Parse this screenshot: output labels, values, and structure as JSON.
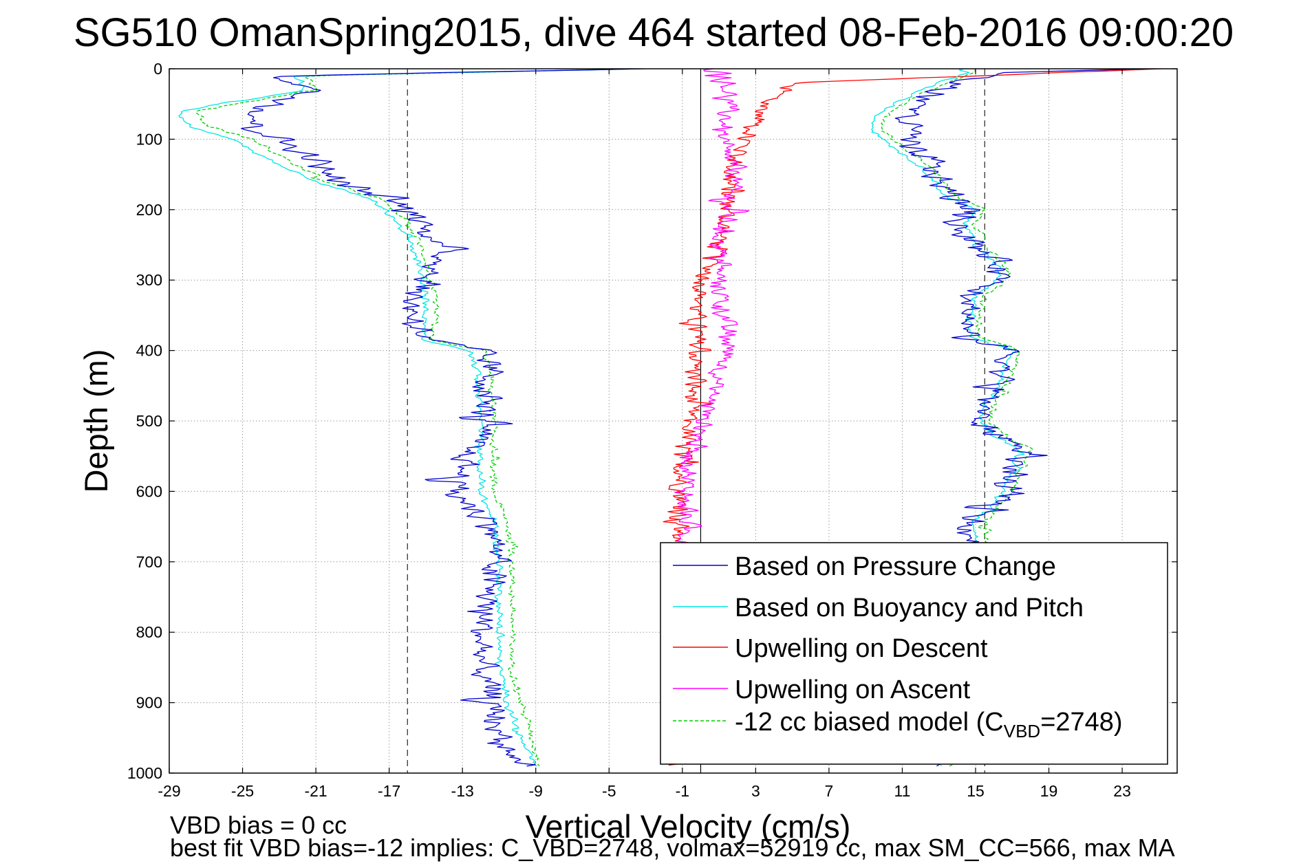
{
  "chart_data": {
    "type": "line",
    "title": "SG510 OmanSpring2015, dive 464 started 08-Feb-2016 09:00:20",
    "xlabel": "Vertical Velocity (cm/s)",
    "ylabel": "Depth (m)",
    "xlim": [
      -29,
      26
    ],
    "ylim": [
      0,
      1000
    ],
    "y_reversed": true,
    "grid": true,
    "x_ticks": [
      -29,
      -25,
      -21,
      -17,
      -13,
      -9,
      -5,
      -1,
      3,
      7,
      11,
      15,
      19,
      23
    ],
    "y_ticks": [
      0,
      100,
      200,
      300,
      400,
      500,
      600,
      700,
      800,
      900,
      1000
    ],
    "reference_lines": {
      "dashed_x": [
        -16,
        15.5
      ],
      "solid_x": [
        0
      ]
    },
    "legend_position": "bottom-right",
    "legend": [
      {
        "label": "Based on Pressure Change",
        "color": "#0000cc",
        "style": "solid"
      },
      {
        "label": "Based on Buoyancy and Pitch",
        "color": "#00e5e5",
        "style": "solid"
      },
      {
        "label": "Upwelling on Descent",
        "color": "#ff0000",
        "style": "solid"
      },
      {
        "label": "Upwelling on Ascent",
        "color": "#ff00ff",
        "style": "solid"
      },
      {
        "label": "-12 cc biased model (C",
        "subscript": "VBD",
        "label_suffix": "=2748)",
        "color": "#00cc00",
        "style": "dashed"
      }
    ],
    "series": [
      {
        "name": "Based on Pressure Change",
        "color": "#0000cc",
        "noise": 1.0,
        "descent": {
          "depth": [
            0,
            10,
            30,
            60,
            80,
            100,
            130,
            160,
            185,
            210,
            240,
            270,
            300,
            330,
            360,
            385,
            400,
            430,
            460,
            500,
            540,
            570,
            600,
            650,
            700,
            750,
            800,
            850,
            900,
            940,
            970,
            990
          ],
          "vel": [
            -3,
            -23,
            -21,
            -24,
            -24.5,
            -23,
            -21,
            -20,
            -17,
            -15.5,
            -14.5,
            -14,
            -15,
            -15.8,
            -15.5,
            -15,
            -12,
            -11.5,
            -11.8,
            -11.8,
            -12.6,
            -13,
            -13.5,
            -11.3,
            -11.2,
            -11.6,
            -12,
            -11.9,
            -11.5,
            -11,
            -10.5,
            -9.5
          ]
        },
        "ascent": {
          "depth": [
            990,
            970,
            940,
            900,
            860,
            820,
            780,
            740,
            700,
            680,
            660,
            640,
            620,
            600,
            580,
            560,
            540,
            520,
            500,
            480,
            460,
            430,
            400,
            380,
            350,
            320,
            300,
            280,
            250,
            220,
            200,
            180,
            150,
            130,
            110,
            90,
            70,
            50,
            30,
            15,
            5,
            0
          ],
          "vel": [
            13,
            14.8,
            15,
            15.2,
            15,
            15,
            15.1,
            15.2,
            15.3,
            15,
            14.8,
            14.8,
            16,
            16.5,
            16.8,
            17.3,
            17.8,
            16.2,
            15,
            15.5,
            16,
            16.5,
            17,
            14.3,
            14.6,
            15,
            16.5,
            16.5,
            14.8,
            14,
            15,
            13.5,
            12.8,
            12.5,
            11,
            11.5,
            11.2,
            12,
            13,
            14.5,
            17,
            24
          ]
        }
      },
      {
        "name": "Based on Buoyancy and Pitch",
        "color": "#00e5e5",
        "noise": 0.25,
        "descent": {
          "depth": [
            0,
            10,
            30,
            60,
            80,
            100,
            130,
            160,
            185,
            210,
            240,
            270,
            300,
            330,
            360,
            385,
            400,
            430,
            460,
            500,
            540,
            570,
            600,
            650,
            700,
            750,
            800,
            850,
            900,
            940,
            970,
            990
          ],
          "vel": [
            -3,
            -22,
            -21.5,
            -28.5,
            -28,
            -25.5,
            -23.5,
            -21,
            -18,
            -16.8,
            -16,
            -15.5,
            -15.2,
            -15,
            -15,
            -15.2,
            -12.5,
            -12.2,
            -12.1,
            -12,
            -12,
            -12.1,
            -12,
            -11.2,
            -11,
            -11,
            -11,
            -11,
            -10.5,
            -10,
            -9.5,
            -9
          ]
        },
        "ascent": {
          "depth": [
            990,
            970,
            940,
            900,
            860,
            820,
            780,
            740,
            700,
            680,
            660,
            640,
            620,
            600,
            580,
            560,
            540,
            520,
            500,
            480,
            460,
            430,
            400,
            380,
            350,
            320,
            300,
            280,
            250,
            220,
            200,
            180,
            150,
            130,
            110,
            90,
            70,
            50,
            30,
            15,
            5,
            0
          ],
          "vel": [
            13,
            14.5,
            15,
            15.2,
            15.1,
            15,
            15.1,
            15.2,
            15.3,
            15.1,
            15,
            15,
            16,
            16.5,
            16.8,
            17.2,
            17.4,
            16,
            15.2,
            15.5,
            16,
            16.5,
            17,
            14.6,
            14.8,
            15,
            16.2,
            16.2,
            15,
            14.5,
            15,
            13.3,
            12.5,
            11.5,
            10.5,
            9.5,
            9.5,
            10.5,
            12,
            13.5,
            14.5,
            14.5
          ]
        }
      },
      {
        "name": "-12 cc biased model",
        "color": "#00cc00",
        "dashed": true,
        "noise": 0.25,
        "descent": {
          "depth": [
            0,
            10,
            30,
            60,
            80,
            100,
            130,
            160,
            185,
            210,
            240,
            270,
            300,
            330,
            360,
            385,
            400,
            430,
            460,
            500,
            540,
            570,
            600,
            650,
            700,
            750,
            800,
            850,
            900,
            940,
            970,
            990
          ],
          "vel": [
            -3,
            -21.5,
            -21,
            -27.5,
            -27,
            -24.5,
            -22.5,
            -20.5,
            -17.5,
            -16.3,
            -15.5,
            -15,
            -14.8,
            -14.5,
            -14.5,
            -14.8,
            -11.8,
            -11.5,
            -11.4,
            -11.3,
            -11.3,
            -11.4,
            -11.3,
            -10.5,
            -10.3,
            -10.3,
            -10.3,
            -10.3,
            -9.8,
            -9.3,
            -9,
            -8.8
          ]
        },
        "ascent": {
          "depth": [
            990,
            970,
            940,
            900,
            860,
            820,
            780,
            740,
            700,
            680,
            660,
            640,
            620,
            600,
            580,
            560,
            540,
            520,
            500,
            480,
            460,
            430,
            400,
            380,
            350,
            320,
            300,
            280,
            250,
            220,
            200,
            180,
            150,
            130,
            110,
            90,
            70,
            50,
            30,
            15,
            5,
            0
          ],
          "vel": [
            13.5,
            15,
            15.5,
            15.8,
            15.6,
            15.5,
            15.6,
            15.8,
            15.8,
            15.6,
            15.5,
            15.5,
            16.5,
            17,
            17.3,
            17.8,
            18,
            16.6,
            15.7,
            16,
            16.5,
            17,
            17.5,
            15,
            15.2,
            15.5,
            16.7,
            16.7,
            15.5,
            15,
            15.5,
            13.8,
            13,
            12,
            11,
            10,
            10,
            11,
            12.5,
            14,
            15,
            15
          ]
        }
      },
      {
        "name": "Upwelling on Descent",
        "color": "#ff0000",
        "noise": 0.7,
        "points": {
          "depth": [
            0,
            20,
            50,
            80,
            100,
            130,
            150,
            180,
            200,
            250,
            300,
            350,
            400,
            450,
            500,
            550,
            600,
            650,
            700,
            750,
            800,
            850,
            900,
            950,
            990
          ],
          "vel": [
            25,
            5,
            3.5,
            3,
            2.5,
            2,
            1.5,
            1.5,
            1.5,
            1,
            0.2,
            -0.3,
            -0.2,
            -0.4,
            -0.6,
            -1,
            -1.1,
            -1.2,
            -1.1,
            -1.1,
            -1.1,
            -1.2,
            -1.1,
            -1.1,
            -1.1
          ]
        }
      },
      {
        "name": "Upwelling on Ascent",
        "color": "#ff00ff",
        "noise": 0.7,
        "points": {
          "depth": [
            0,
            20,
            50,
            80,
            100,
            130,
            150,
            180,
            200,
            250,
            300,
            350,
            400,
            450,
            500,
            550,
            600,
            650,
            680
          ],
          "vel": [
            1,
            1.5,
            1.5,
            1.3,
            1,
            1.5,
            2,
            1.5,
            1.5,
            1,
            1,
            1.3,
            1.5,
            0.8,
            0.2,
            -0.5,
            -0.8,
            -0.8,
            -0.8
          ]
        }
      }
    ]
  },
  "annotations": {
    "line1": "VBD bias = 0 cc",
    "line2": "best fit VBD bias=-12 implies: C_VBD=2748, volmax=52919 cc, max SM_CC=566, max MA"
  }
}
